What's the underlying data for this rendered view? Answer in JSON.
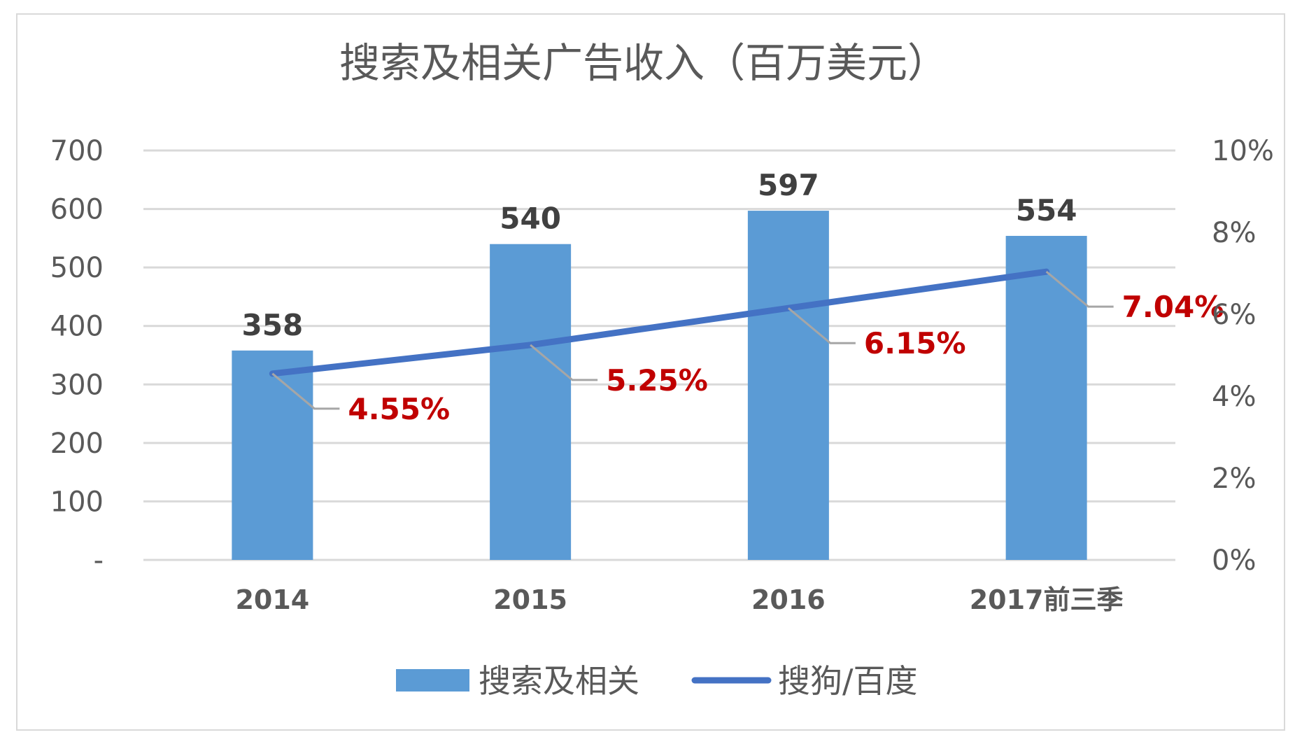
{
  "colors": {
    "bar": "#5b9bd5",
    "line": "#4472c4",
    "data_label_bar": "#404040",
    "data_label_line": "#c00000",
    "axis_text": "#595959",
    "grid": "#d9d9d9",
    "leader": "#a6a6a6",
    "frame": "#d9d9d9",
    "title": "#595959"
  },
  "chart_data": {
    "type": "bar",
    "title": "搜索及相关广告收入（百万美元）",
    "categories": [
      "2014",
      "2015",
      "2016",
      "2017前三季"
    ],
    "series": [
      {
        "name": "搜索及相关",
        "type": "bar",
        "axis": "left",
        "values": [
          358,
          540,
          597,
          554
        ],
        "labels": [
          "358",
          "540",
          "597",
          "554"
        ]
      },
      {
        "name": "搜狗/百度",
        "type": "line",
        "axis": "right",
        "values": [
          4.55,
          5.25,
          6.15,
          7.04
        ],
        "labels": [
          "4.55%",
          "5.25%",
          "6.15%",
          "7.04%"
        ]
      }
    ],
    "ylim": [
      0,
      700
    ],
    "y_ticks": [
      "-",
      "100",
      "200",
      "300",
      "400",
      "500",
      "600",
      "700"
    ],
    "y2lim": [
      0,
      10
    ],
    "y2_ticks": [
      "0%",
      "2%",
      "4%",
      "6%",
      "8%",
      "10%"
    ],
    "grid": true,
    "legend_position": "bottom"
  }
}
